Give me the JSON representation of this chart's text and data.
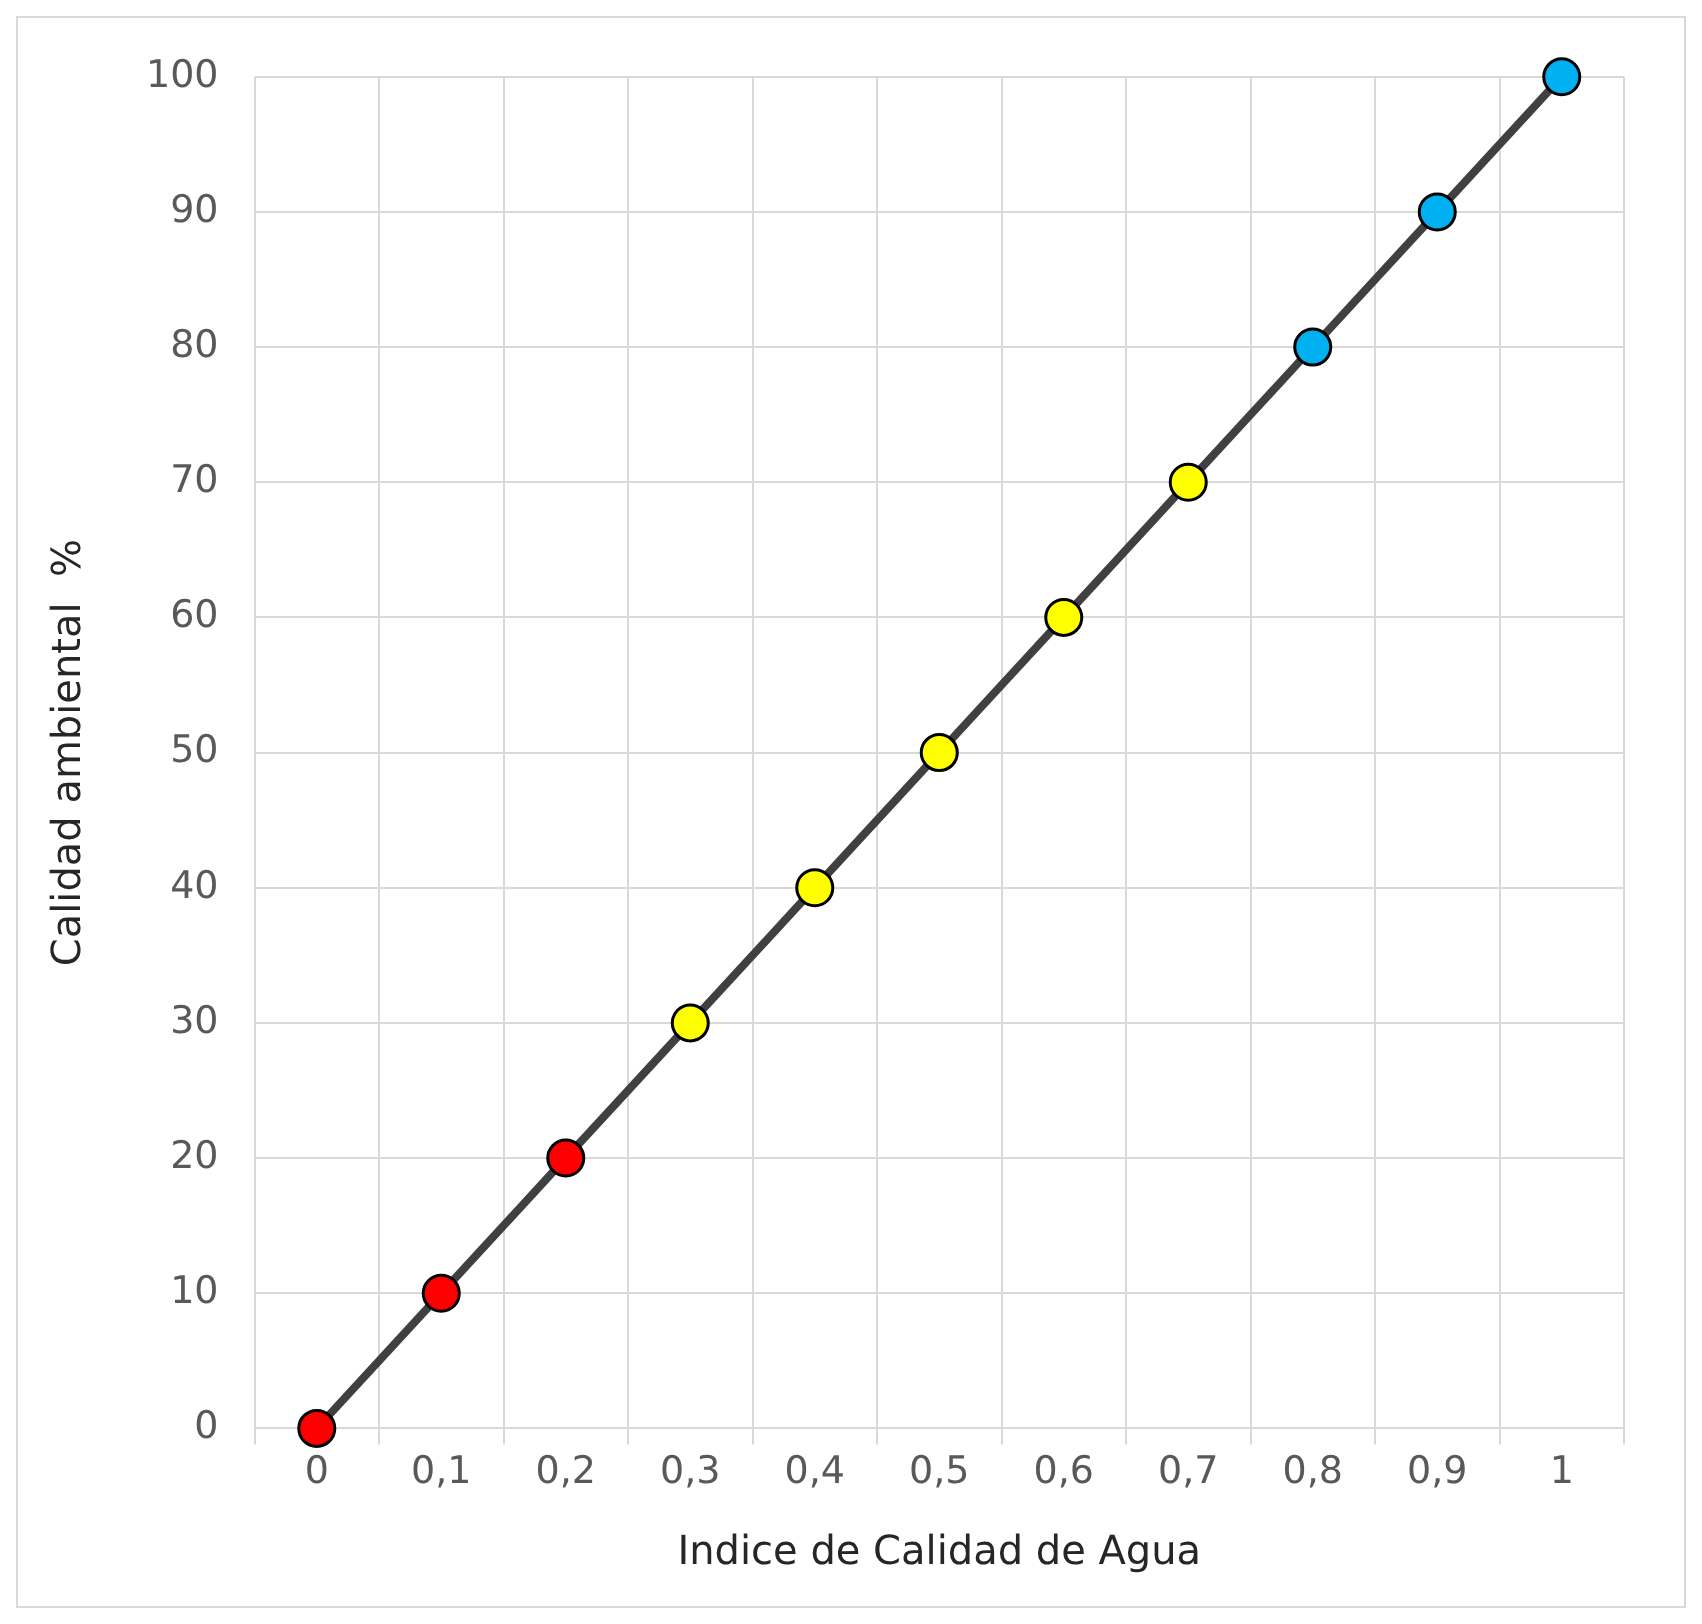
{
  "chart_data": {
    "type": "line",
    "xlabel": "Indice de Calidad de Agua",
    "ylabel": "Calidad ambiental  %",
    "categories": [
      "0",
      "0,1",
      "0,2",
      "0,3",
      "0,4",
      "0,5",
      "0,6",
      "0,7",
      "0,8",
      "0,9",
      "1"
    ],
    "series": [
      {
        "color": "#404040",
        "colors": [
          "#ff0000",
          "#ff0000",
          "#ff0000",
          "#ffff00",
          "#ffff00",
          "#ffff00",
          "#ffff00",
          "#ffff00",
          "#00b0f0",
          "#00b0f0",
          "#00b0f0"
        ],
        "values": [
          0,
          10,
          20,
          30,
          40,
          50,
          60,
          70,
          80,
          90,
          100
        ]
      }
    ],
    "ylim": [
      0,
      100
    ],
    "yticks": [
      0,
      10,
      20,
      30,
      40,
      50,
      60,
      70,
      80,
      90,
      100
    ],
    "grid": true,
    "marker": "circle",
    "line_style": "solid"
  }
}
